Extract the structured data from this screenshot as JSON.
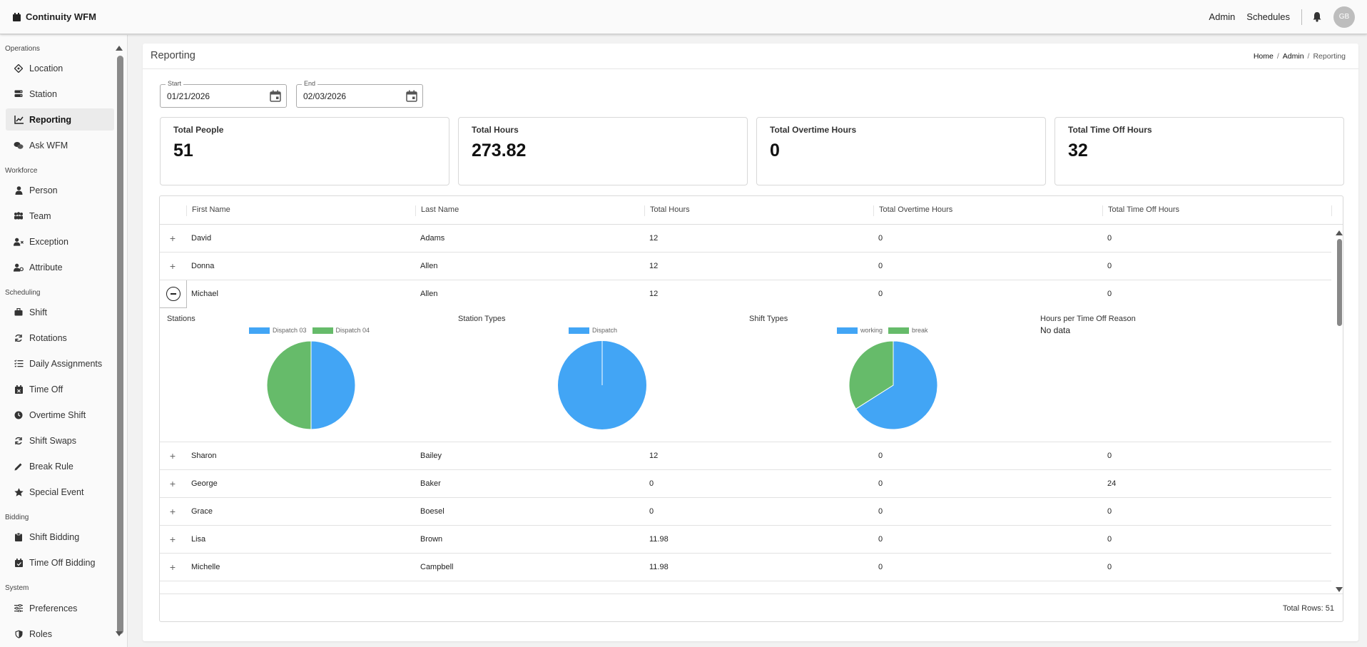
{
  "app": {
    "title": "Continuity WFM"
  },
  "topnav": {
    "admin": "Admin",
    "schedules": "Schedules",
    "avatar": "GB"
  },
  "sidebar": {
    "sections": [
      {
        "title": "Operations",
        "items": [
          {
            "label": "Location",
            "icon": "location-icon"
          },
          {
            "label": "Station",
            "icon": "station-icon"
          },
          {
            "label": "Reporting",
            "icon": "chart-line-icon",
            "active": true
          },
          {
            "label": "Ask WFM",
            "icon": "chat-icon"
          }
        ]
      },
      {
        "title": "Workforce",
        "items": [
          {
            "label": "Person",
            "icon": "person-icon"
          },
          {
            "label": "Team",
            "icon": "team-icon"
          },
          {
            "label": "Exception",
            "icon": "person-x-icon"
          },
          {
            "label": "Attribute",
            "icon": "person-gear-icon"
          }
        ]
      },
      {
        "title": "Scheduling",
        "items": [
          {
            "label": "Shift",
            "icon": "briefcase-icon"
          },
          {
            "label": "Rotations",
            "icon": "rotate-icon"
          },
          {
            "label": "Daily Assignments",
            "icon": "checklist-icon"
          },
          {
            "label": "Time Off",
            "icon": "calendar-x-icon"
          },
          {
            "label": "Overtime Shift",
            "icon": "clock-icon"
          },
          {
            "label": "Shift Swaps",
            "icon": "swap-icon"
          },
          {
            "label": "Break Rule",
            "icon": "ruler-icon"
          },
          {
            "label": "Special Event",
            "icon": "star-icon"
          }
        ]
      },
      {
        "title": "Bidding",
        "items": [
          {
            "label": "Shift Bidding",
            "icon": "clipboard-icon"
          },
          {
            "label": "Time Off Bidding",
            "icon": "calendar-check-icon"
          }
        ]
      },
      {
        "title": "System",
        "items": [
          {
            "label": "Preferences",
            "icon": "sliders-icon"
          },
          {
            "label": "Roles",
            "icon": "shield-icon"
          }
        ]
      }
    ]
  },
  "page": {
    "title": "Reporting",
    "breadcrumb": {
      "home": "Home",
      "admin": "Admin",
      "current": "Reporting",
      "sep": "/"
    }
  },
  "filters": {
    "start": {
      "label": "Start",
      "value": "01/21/2026"
    },
    "end": {
      "label": "End",
      "value": "02/03/2026"
    }
  },
  "stats": [
    {
      "label": "Total People",
      "value": "51"
    },
    {
      "label": "Total Hours",
      "value": "273.82"
    },
    {
      "label": "Total Overtime Hours",
      "value": "0"
    },
    {
      "label": "Total Time Off Hours",
      "value": "32"
    }
  ],
  "table": {
    "columns": [
      "First Name",
      "Last Name",
      "Total Hours",
      "Total Overtime Hours",
      "Total Time Off Hours"
    ],
    "rows_before": [
      {
        "first": "David",
        "last": "Adams",
        "hours": "12",
        "ot": "0",
        "timeoff": "0"
      },
      {
        "first": "Donna",
        "last": "Allen",
        "hours": "12",
        "ot": "0",
        "timeoff": "0"
      }
    ],
    "expanded_row": {
      "first": "Michael",
      "last": "Allen",
      "hours": "12",
      "ot": "0",
      "timeoff": "0"
    },
    "rows_after": [
      {
        "first": "Sharon",
        "last": "Bailey",
        "hours": "12",
        "ot": "0",
        "timeoff": "0"
      },
      {
        "first": "George",
        "last": "Baker",
        "hours": "0",
        "ot": "0",
        "timeoff": "24"
      },
      {
        "first": "Grace",
        "last": "Boesel",
        "hours": "0",
        "ot": "0",
        "timeoff": "0"
      },
      {
        "first": "Lisa",
        "last": "Brown",
        "hours": "11.98",
        "ot": "0",
        "timeoff": "0"
      },
      {
        "first": "Michelle",
        "last": "Campbell",
        "hours": "11.98",
        "ot": "0",
        "timeoff": "0"
      }
    ],
    "footer": "Total Rows: 51"
  },
  "colors": {
    "blue": "#42a5f5",
    "green": "#66bb6a"
  },
  "chart_data": [
    {
      "type": "pie",
      "title": "Stations",
      "categories": [
        "Dispatch 03",
        "Dispatch 04"
      ],
      "values": [
        50,
        50
      ],
      "colors": [
        "#42a5f5",
        "#66bb6a"
      ],
      "legend": "top"
    },
    {
      "type": "pie",
      "title": "Station Types",
      "categories": [
        "Dispatch"
      ],
      "values": [
        100
      ],
      "colors": [
        "#42a5f5"
      ],
      "legend": "top"
    },
    {
      "type": "pie",
      "title": "Shift Types",
      "categories": [
        "working",
        "break"
      ],
      "values": [
        66,
        34
      ],
      "colors": [
        "#42a5f5",
        "#66bb6a"
      ],
      "legend": "top"
    },
    {
      "type": "pie",
      "title": "Hours per Time Off Reason",
      "categories": [],
      "values": [],
      "empty_text": "No data"
    }
  ]
}
